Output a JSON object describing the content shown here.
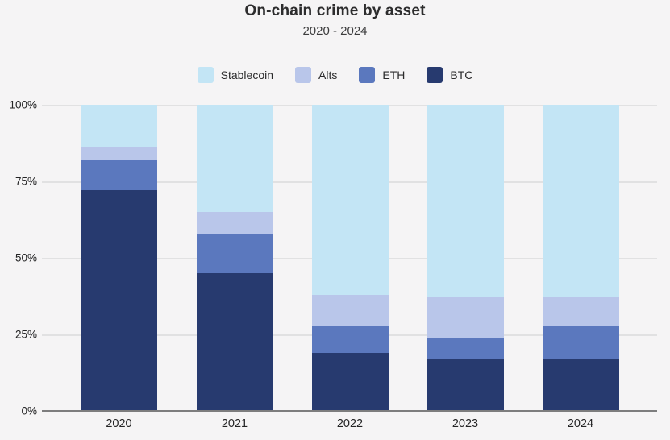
{
  "chart_data": {
    "type": "bar",
    "stacked": true,
    "percent_stacked": true,
    "title": "On-chain crime by asset",
    "subtitle": "2020 - 2024",
    "categories": [
      "2020",
      "2021",
      "2022",
      "2023",
      "2024"
    ],
    "series": [
      {
        "name": "Stablecoin",
        "color": "#c3e5f5",
        "values": [
          14,
          35,
          62,
          63,
          63
        ]
      },
      {
        "name": "Alts",
        "color": "#b9c6ea",
        "values": [
          4,
          7,
          10,
          13,
          9
        ]
      },
      {
        "name": "ETH",
        "color": "#5b78be",
        "values": [
          10,
          13,
          9,
          7,
          11
        ]
      },
      {
        "name": "BTC",
        "color": "#273a6f",
        "values": [
          72,
          45,
          19,
          17,
          17
        ]
      }
    ],
    "xlabel": "",
    "ylabel": "",
    "ylim": [
      0,
      100
    ],
    "y_ticks": [
      "100%",
      "75%",
      "50%",
      "25%",
      "0%"
    ],
    "grid": true,
    "legend_position": "top",
    "colors": {
      "background": "#f5f4f5",
      "gridline": "#e1e1e2",
      "axis_line": "#7d7d7e",
      "title_text": "#2d2d2e",
      "tick_text": "#242425"
    }
  }
}
